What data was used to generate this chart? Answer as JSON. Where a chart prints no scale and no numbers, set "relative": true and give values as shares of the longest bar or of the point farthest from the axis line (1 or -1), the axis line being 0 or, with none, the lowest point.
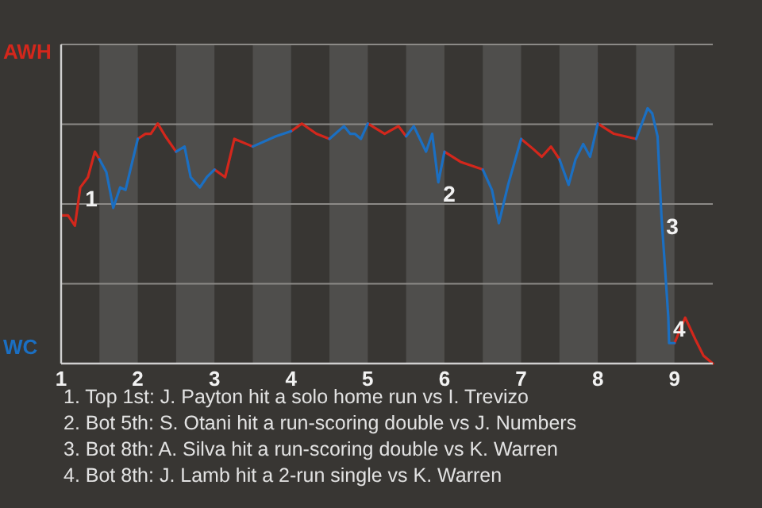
{
  "chart_data": {
    "type": "line",
    "relative": true,
    "x": [
      1.01,
      1.09,
      1.18,
      1.25,
      1.35,
      1.44,
      1.5,
      1.59,
      1.68,
      1.77,
      1.84,
      2.0,
      2.1,
      2.17,
      2.26,
      2.36,
      2.5,
      2.61,
      2.69,
      2.81,
      2.9,
      3.0,
      3.14,
      3.26,
      3.5,
      3.8,
      4.0,
      4.14,
      4.33,
      4.5,
      4.69,
      4.77,
      4.83,
      4.91,
      5.0,
      5.22,
      5.4,
      5.5,
      5.6,
      5.68,
      5.76,
      5.84,
      5.92,
      6.0,
      6.21,
      6.5,
      6.62,
      6.71,
      6.83,
      7.0,
      7.16,
      7.27,
      7.39,
      7.5,
      7.62,
      7.71,
      7.81,
      7.9,
      8.0,
      8.21,
      8.5,
      8.65,
      8.71,
      8.78,
      8.83,
      8.88,
      8.92,
      8.93,
      9.0,
      9.14,
      9.28,
      9.38,
      9.5
    ],
    "series": [
      {
        "name": "AWH",
        "color": "#d3271c",
        "values": [
          0.58,
          0.58,
          0.54,
          0.69,
          0.73,
          0.83,
          0.8,
          null,
          null,
          null,
          null,
          0.88,
          0.9,
          0.9,
          0.94,
          0.89,
          0.83,
          null,
          null,
          null,
          null,
          0.76,
          0.73,
          0.88,
          0.85,
          null,
          0.91,
          0.94,
          0.9,
          0.88,
          null,
          null,
          null,
          null,
          0.94,
          0.9,
          0.93,
          0.89,
          null,
          null,
          null,
          null,
          null,
          0.83,
          0.79,
          0.76,
          null,
          null,
          null,
          0.88,
          0.84,
          0.81,
          0.85,
          0.8,
          null,
          null,
          null,
          null,
          0.94,
          0.9,
          0.88,
          null,
          null,
          null,
          null,
          null,
          null,
          null,
          0.08,
          0.18,
          0.09,
          0.03,
          0
        ]
      },
      {
        "name": "WC",
        "color": "#1b6fc2",
        "values": [
          null,
          null,
          null,
          null,
          null,
          null,
          0.8,
          0.75,
          0.61,
          0.69,
          0.68,
          0.88,
          null,
          null,
          null,
          null,
          0.83,
          0.85,
          0.73,
          0.69,
          0.73,
          0.76,
          null,
          null,
          0.85,
          0.89,
          0.91,
          null,
          null,
          0.88,
          0.93,
          0.9,
          0.9,
          0.88,
          0.94,
          null,
          null,
          0.89,
          0.93,
          0.88,
          0.83,
          0.9,
          0.71,
          0.83,
          null,
          0.76,
          0.68,
          0.55,
          0.7,
          0.88,
          null,
          null,
          null,
          0.8,
          0.7,
          0.8,
          0.86,
          0.81,
          0.94,
          null,
          0.88,
          1,
          0.98,
          0.89,
          0.58,
          0.36,
          0.18,
          0.08,
          0.08,
          null,
          null,
          null,
          null
        ]
      }
    ],
    "xlim": [
      1,
      9.5
    ],
    "xticks": [
      1,
      2,
      3,
      4,
      5,
      6,
      7,
      8,
      9
    ],
    "grid": "y",
    "legend": false,
    "marker": "none",
    "line_style": "solid",
    "bands": [
      {
        "axis": "x",
        "from": 1.5,
        "to": 2,
        "color": "#4f4e4c"
      },
      {
        "axis": "x",
        "from": 2.5,
        "to": 3,
        "color": "#4f4e4c"
      },
      {
        "axis": "x",
        "from": 3.5,
        "to": 4,
        "color": "#4f4e4c"
      },
      {
        "axis": "x",
        "from": 4.5,
        "to": 5,
        "color": "#4f4e4c"
      },
      {
        "axis": "x",
        "from": 5.5,
        "to": 6,
        "color": "#4f4e4c"
      },
      {
        "axis": "x",
        "from": 6.5,
        "to": 7,
        "color": "#4f4e4c"
      },
      {
        "axis": "x",
        "from": 7.5,
        "to": 8,
        "color": "#4f4e4c"
      },
      {
        "axis": "x",
        "from": 8.5,
        "to": 9,
        "color": "#4f4e4c"
      }
    ],
    "annotations": [
      {
        "text": "1",
        "x": 1.25,
        "y": 0.69
      },
      {
        "text": "2",
        "x": 5.92,
        "y": 0.71
      },
      {
        "text": "3",
        "x": 8.83,
        "y": 0.58
      },
      {
        "text": "4",
        "x": 8.92,
        "y": 0.18
      },
      "1. Top 1st: J. Payton hit a solo home run vs I. Trevizo",
      "2. Bot 5th: S. Otani hit a run-scoring double vs J. Numbers",
      "3. Bot 8th: A. Silva hit a run-scoring double vs K. Warren",
      "4. Bot 8th: J. Lamb hit a 2-run single vs K. Warren"
    ]
  }
}
